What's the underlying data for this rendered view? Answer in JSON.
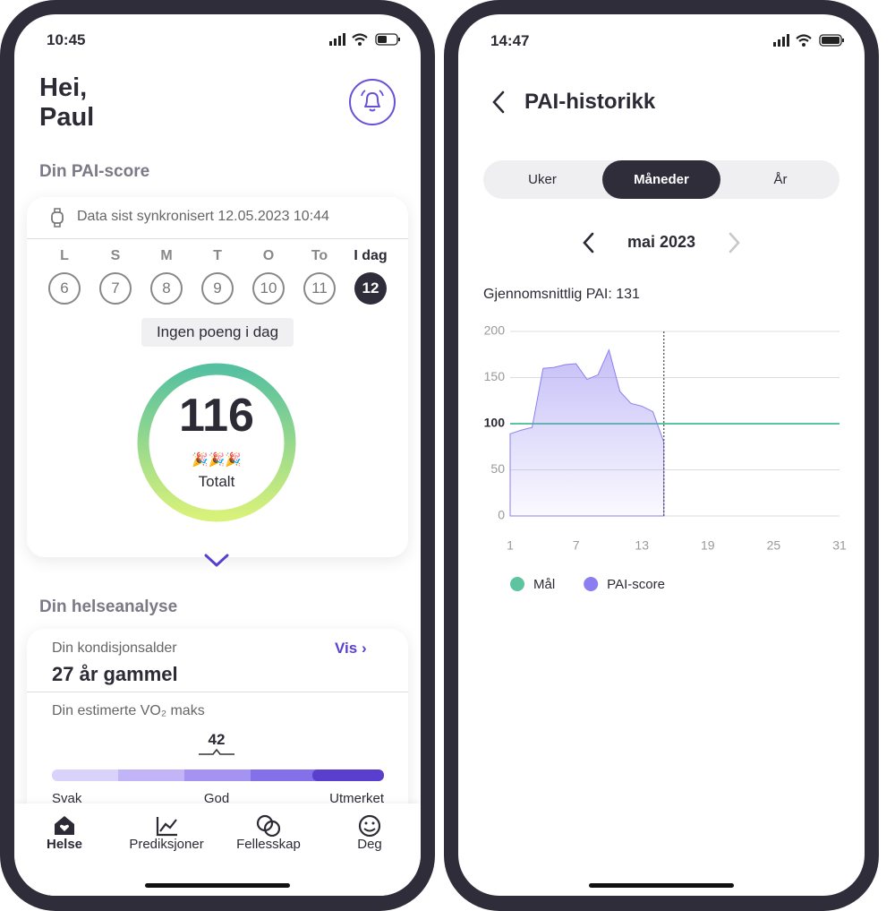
{
  "left_phone": {
    "status_time": "10:45",
    "greeting": [
      "Hei,",
      "Paul"
    ],
    "pai_section": "Din PAI-score",
    "sync_text": "Data sist synkronisert 12.05.2023 10:44",
    "days": [
      {
        "letter": "L",
        "number": "6"
      },
      {
        "letter": "S",
        "number": "7"
      },
      {
        "letter": "M",
        "number": "8"
      },
      {
        "letter": "T",
        "number": "9"
      },
      {
        "letter": "O",
        "number": "10"
      },
      {
        "letter": "To",
        "number": "11"
      },
      {
        "letter": "I dag",
        "number": "12"
      }
    ],
    "no_points": "Ingen poeng i dag",
    "score": "116",
    "score_emoji": "🎉🎉🎉",
    "score_label": "Totalt",
    "health_section": "Din helseanalyse",
    "fitness_age_label": "Din kondisjonsalder",
    "view_link": "Vis",
    "fitness_age": "27 år gammel",
    "vo2_label": "Din estimerte VO₂ maks",
    "vo2_value": "42",
    "vo2_scale": [
      "Svak",
      "God",
      "Utmerket"
    ],
    "nav": [
      "Helse",
      "Prediksjoner",
      "Fellesskap",
      "Deg"
    ]
  },
  "right_phone": {
    "status_time": "14:47",
    "title": "PAI-historikk",
    "tabs": [
      "Uker",
      "Måneder",
      "År"
    ],
    "month": "mai 2023"
  },
  "chart_data": {
    "type": "area",
    "title": "Gjennomsnittlig PAI: 131",
    "xlim": [
      1,
      31
    ],
    "xticks": [
      1,
      7,
      13,
      19,
      25,
      31
    ],
    "ylim": [
      0,
      200
    ],
    "yticks": [
      0,
      50,
      100,
      150,
      200
    ],
    "grid": true,
    "today_marker": 15,
    "series": [
      {
        "name": "Mål",
        "color": "#5ec4a0",
        "x": [
          1,
          31
        ],
        "values": [
          100,
          100
        ]
      },
      {
        "name": "PAI-score",
        "color": "#8b7ef0",
        "x": [
          1,
          2,
          3,
          4,
          5,
          6,
          7,
          8,
          9,
          10,
          11,
          12,
          13,
          14,
          15
        ],
        "values": [
          89,
          93,
          96,
          160,
          161,
          164,
          165,
          148,
          153,
          180,
          135,
          122,
          119,
          113,
          80
        ]
      }
    ]
  }
}
